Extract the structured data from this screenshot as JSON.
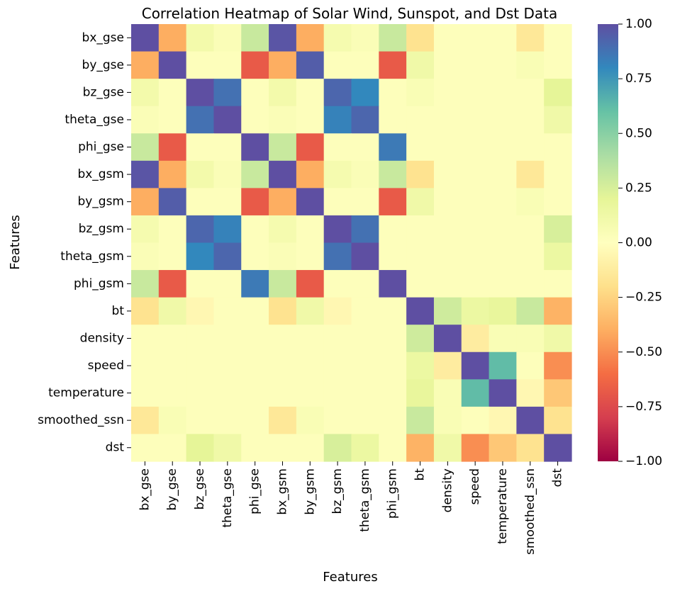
{
  "chart_data": {
    "type": "heatmap",
    "title": "Correlation Heatmap of Solar Wind, Sunspot, and Dst Data",
    "xlabel": "Features",
    "ylabel": "Features",
    "features": [
      "bx_gse",
      "by_gse",
      "bz_gse",
      "theta_gse",
      "phi_gse",
      "bx_gsm",
      "by_gsm",
      "bz_gsm",
      "theta_gsm",
      "phi_gsm",
      "bt",
      "density",
      "speed",
      "temperature",
      "smoothed_ssn",
      "dst"
    ],
    "colorbar": {
      "colormap": "Spectral",
      "vmin": -1.0,
      "vmax": 1.0,
      "tick_values": [
        1.0,
        0.75,
        0.5,
        0.25,
        0.0,
        -0.25,
        -0.5,
        -0.75,
        -1.0
      ],
      "tick_labels": [
        "1.00",
        "0.75",
        "0.50",
        "0.25",
        "0.00",
        "−0.25",
        "−0.50",
        "−0.75",
        "−1.00"
      ]
    },
    "matrix": [
      [
        1.0,
        -0.4,
        0.1,
        0.04,
        0.3,
        0.98,
        -0.4,
        0.08,
        0.04,
        0.3,
        -0.18,
        0.02,
        0.02,
        0.02,
        -0.15,
        0.02
      ],
      [
        -0.4,
        1.0,
        0.02,
        0.02,
        -0.68,
        -0.4,
        0.95,
        0.02,
        0.02,
        -0.68,
        0.12,
        0.02,
        0.02,
        0.02,
        0.05,
        0.02
      ],
      [
        0.1,
        0.02,
        1.0,
        0.88,
        0.02,
        0.1,
        0.02,
        0.92,
        0.8,
        0.02,
        0.05,
        0.02,
        0.02,
        0.02,
        0.02,
        0.2
      ],
      [
        0.04,
        0.02,
        0.88,
        1.0,
        0.02,
        0.04,
        0.02,
        0.82,
        0.92,
        0.02,
        0.02,
        0.02,
        0.02,
        0.02,
        0.02,
        0.12
      ],
      [
        0.3,
        -0.68,
        0.02,
        0.02,
        1.0,
        0.3,
        -0.68,
        0.02,
        0.02,
        0.85,
        0.02,
        0.02,
        0.02,
        0.02,
        0.02,
        0.02
      ],
      [
        0.98,
        -0.4,
        0.1,
        0.04,
        0.3,
        1.0,
        -0.4,
        0.08,
        0.04,
        0.3,
        -0.18,
        0.02,
        0.02,
        0.02,
        -0.15,
        0.02
      ],
      [
        -0.4,
        0.95,
        0.02,
        0.02,
        -0.68,
        -0.4,
        1.0,
        0.02,
        0.02,
        -0.68,
        0.12,
        0.02,
        0.02,
        0.02,
        0.05,
        0.02
      ],
      [
        0.08,
        0.02,
        0.92,
        0.82,
        0.02,
        0.08,
        0.02,
        1.0,
        0.88,
        0.02,
        0.02,
        0.02,
        0.02,
        0.02,
        0.02,
        0.25
      ],
      [
        0.04,
        0.02,
        0.8,
        0.92,
        0.02,
        0.04,
        0.02,
        0.88,
        1.0,
        0.02,
        0.02,
        0.02,
        0.02,
        0.02,
        0.02,
        0.15
      ],
      [
        0.3,
        -0.68,
        0.02,
        0.02,
        0.85,
        0.3,
        -0.68,
        0.02,
        0.02,
        1.0,
        0.02,
        0.02,
        0.02,
        0.02,
        0.02,
        0.02
      ],
      [
        -0.18,
        0.12,
        -0.05,
        0.02,
        0.02,
        -0.18,
        0.12,
        -0.05,
        0.02,
        0.02,
        1.0,
        0.28,
        0.15,
        0.18,
        0.3,
        -0.38
      ],
      [
        0.02,
        0.02,
        0.02,
        0.02,
        0.02,
        0.02,
        0.02,
        0.02,
        0.02,
        0.02,
        0.28,
        1.0,
        -0.12,
        0.05,
        0.05,
        0.12
      ],
      [
        0.02,
        0.02,
        0.02,
        0.02,
        0.02,
        0.02,
        0.02,
        0.02,
        0.02,
        0.02,
        0.15,
        -0.12,
        1.0,
        0.62,
        0.02,
        -0.5
      ],
      [
        0.02,
        0.02,
        0.02,
        0.02,
        0.02,
        0.02,
        0.02,
        0.02,
        0.02,
        0.02,
        0.18,
        0.05,
        0.62,
        1.0,
        -0.05,
        -0.3
      ],
      [
        -0.15,
        0.05,
        0.02,
        0.02,
        0.02,
        -0.15,
        0.05,
        0.02,
        0.02,
        0.02,
        0.3,
        0.05,
        0.02,
        -0.05,
        1.0,
        -0.18
      ],
      [
        0.02,
        0.02,
        0.2,
        0.12,
        0.02,
        0.02,
        0.02,
        0.25,
        0.15,
        0.02,
        -0.38,
        0.12,
        -0.5,
        -0.3,
        -0.18,
        1.0
      ]
    ]
  }
}
